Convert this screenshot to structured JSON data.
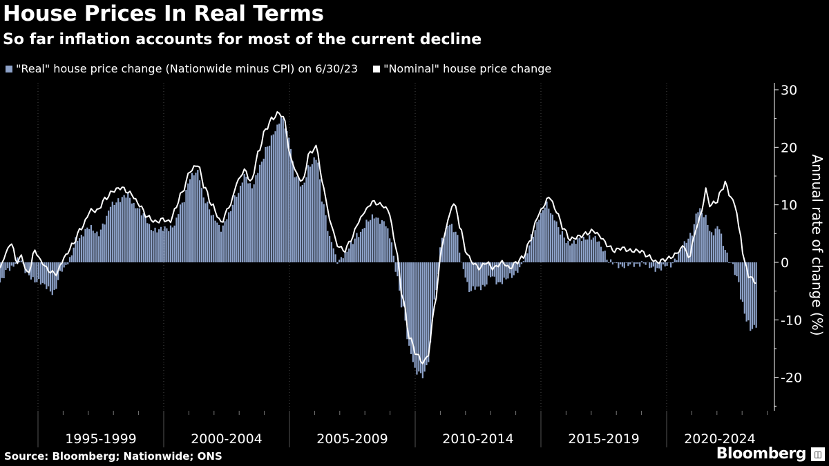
{
  "title": "House Prices In Real Terms",
  "subtitle": "So far inflation accounts for most of the current decline",
  "source": "Source: Bloomberg; Nationwide; ONS",
  "brand": "Bloomberg",
  "brand_mark_icon": "bloomberg-terminal-icon",
  "colors": {
    "real": "#8da2c9",
    "nominal": "#ffffff",
    "background": "#000000"
  },
  "chart_data": {
    "type": "bar+line",
    "title": "House Prices In Real Terms",
    "subtitle": "So far inflation accounts for most of the current decline",
    "ylabel": "Annual rate of change (%)",
    "xlabel": "",
    "ylim": [
      -26,
      30
    ],
    "yticks": [
      30,
      20,
      10,
      0,
      -10,
      -20
    ],
    "xlim": [
      1991.0,
      2023.6
    ],
    "period_labels": [
      "1995-1999",
      "2000-2004",
      "2005-2009",
      "2010-2014",
      "2015-2019",
      "2020-2024"
    ],
    "legend_position": "top-left",
    "grid": "vertical dotted",
    "series": [
      {
        "name": "\"Real\" house price change (Nationwide minus CPI) on 6/30/23",
        "kind": "bar",
        "anchors": [
          [
            1991.0,
            -3.5
          ],
          [
            1991.4,
            -1
          ],
          [
            1991.8,
            0.5
          ],
          [
            1992.2,
            -2
          ],
          [
            1992.6,
            -3.5
          ],
          [
            1993.0,
            -4
          ],
          [
            1993.3,
            -5.5
          ],
          [
            1993.7,
            -1
          ],
          [
            1994.0,
            0.5
          ],
          [
            1994.3,
            4
          ],
          [
            1994.8,
            6
          ],
          [
            1995.2,
            5
          ],
          [
            1995.5,
            7
          ],
          [
            1995.8,
            10
          ],
          [
            1996.1,
            11
          ],
          [
            1996.5,
            11.5
          ],
          [
            1996.8,
            10
          ],
          [
            1997.2,
            8
          ],
          [
            1997.5,
            6
          ],
          [
            1997.8,
            5.5
          ],
          [
            1998.2,
            6
          ],
          [
            1998.5,
            6.5
          ],
          [
            1998.8,
            10
          ],
          [
            1999.2,
            15
          ],
          [
            1999.5,
            15.5
          ],
          [
            1999.8,
            11
          ],
          [
            2000.2,
            7.5
          ],
          [
            2000.5,
            6
          ],
          [
            2000.8,
            8
          ],
          [
            2001.2,
            12
          ],
          [
            2001.5,
            15
          ],
          [
            2001.8,
            13
          ],
          [
            2002.2,
            17
          ],
          [
            2002.5,
            20
          ],
          [
            2002.8,
            23
          ],
          [
            2003.1,
            25
          ],
          [
            2003.4,
            22
          ],
          [
            2003.7,
            15
          ],
          [
            2004.0,
            13
          ],
          [
            2004.3,
            17
          ],
          [
            2004.6,
            18
          ],
          [
            2004.9,
            10
          ],
          [
            2005.2,
            4
          ],
          [
            2005.5,
            0
          ],
          [
            2005.8,
            1.5
          ],
          [
            2006.1,
            3
          ],
          [
            2006.4,
            5
          ],
          [
            2006.8,
            7
          ],
          [
            2007.1,
            8
          ],
          [
            2007.5,
            7
          ],
          [
            2007.8,
            4
          ],
          [
            2008.0,
            -1
          ],
          [
            2008.3,
            -8
          ],
          [
            2008.6,
            -15
          ],
          [
            2008.9,
            -19
          ],
          [
            2009.2,
            -20
          ],
          [
            2009.4,
            -17
          ],
          [
            2009.7,
            -6
          ],
          [
            2010.0,
            4
          ],
          [
            2010.3,
            7
          ],
          [
            2010.6,
            5
          ],
          [
            2010.9,
            -1
          ],
          [
            2011.2,
            -5
          ],
          [
            2011.5,
            -4.5
          ],
          [
            2011.8,
            -4
          ],
          [
            2012.1,
            -2.5
          ],
          [
            2012.4,
            -3.5
          ],
          [
            2012.7,
            -3
          ],
          [
            2013.0,
            -2.5
          ],
          [
            2013.3,
            -1
          ],
          [
            2013.6,
            1
          ],
          [
            2013.9,
            5
          ],
          [
            2014.2,
            8
          ],
          [
            2014.5,
            10
          ],
          [
            2014.8,
            8
          ],
          [
            2015.1,
            5
          ],
          [
            2015.4,
            3.5
          ],
          [
            2015.7,
            3.5
          ],
          [
            2016.0,
            4
          ],
          [
            2016.3,
            4.5
          ],
          [
            2016.6,
            4
          ],
          [
            2016.9,
            2.5
          ],
          [
            2017.2,
            0
          ],
          [
            2017.5,
            -0.5
          ],
          [
            2017.8,
            -0.5
          ],
          [
            2018.2,
            -0.5
          ],
          [
            2018.6,
            0
          ],
          [
            2019.0,
            -1
          ],
          [
            2019.4,
            -1
          ],
          [
            2019.8,
            -0.5
          ],
          [
            2020.1,
            1
          ],
          [
            2020.4,
            3
          ],
          [
            2020.7,
            5
          ],
          [
            2021.0,
            9
          ],
          [
            2021.3,
            8
          ],
          [
            2021.6,
            5
          ],
          [
            2021.9,
            6
          ],
          [
            2022.1,
            3
          ],
          [
            2022.4,
            0
          ],
          [
            2022.7,
            -3
          ],
          [
            2022.9,
            -7
          ],
          [
            2023.1,
            -10
          ],
          [
            2023.3,
            -12
          ],
          [
            2023.5,
            -11
          ]
        ]
      },
      {
        "name": "\"Nominal\" house price change",
        "kind": "line",
        "anchors": [
          [
            1991.0,
            -1
          ],
          [
            1991.3,
            2
          ],
          [
            1991.5,
            3.5
          ],
          [
            1991.7,
            0
          ],
          [
            1991.9,
            1
          ],
          [
            1992.2,
            -2
          ],
          [
            1992.5,
            2
          ],
          [
            1992.8,
            0
          ],
          [
            1993.1,
            -1.5
          ],
          [
            1993.4,
            -2
          ],
          [
            1993.8,
            1
          ],
          [
            1994.1,
            3
          ],
          [
            1994.5,
            6
          ],
          [
            1994.9,
            9
          ],
          [
            1995.2,
            9
          ],
          [
            1995.5,
            11
          ],
          [
            1995.9,
            12.5
          ],
          [
            1996.2,
            13
          ],
          [
            1996.6,
            12
          ],
          [
            1997.0,
            10
          ],
          [
            1997.3,
            8
          ],
          [
            1997.7,
            7
          ],
          [
            1998.0,
            7.5
          ],
          [
            1998.3,
            7
          ],
          [
            1998.5,
            9
          ],
          [
            1998.8,
            12
          ],
          [
            1999.2,
            16
          ],
          [
            1999.5,
            17
          ],
          [
            1999.8,
            13
          ],
          [
            2000.1,
            10
          ],
          [
            2000.5,
            7
          ],
          [
            2000.9,
            10
          ],
          [
            2001.2,
            14
          ],
          [
            2001.5,
            16
          ],
          [
            2001.8,
            14
          ],
          [
            2002.1,
            19
          ],
          [
            2002.4,
            23
          ],
          [
            2002.7,
            25
          ],
          [
            2003.0,
            26
          ],
          [
            2003.2,
            25
          ],
          [
            2003.5,
            18
          ],
          [
            2003.8,
            15
          ],
          [
            2004.0,
            14
          ],
          [
            2004.3,
            19
          ],
          [
            2004.6,
            20
          ],
          [
            2004.9,
            13
          ],
          [
            2005.2,
            7
          ],
          [
            2005.5,
            3
          ],
          [
            2005.8,
            2
          ],
          [
            2006.1,
            4
          ],
          [
            2006.4,
            7
          ],
          [
            2006.7,
            9
          ],
          [
            2007.0,
            10.5
          ],
          [
            2007.4,
            10
          ],
          [
            2007.7,
            9
          ],
          [
            2008.0,
            3
          ],
          [
            2008.3,
            -6
          ],
          [
            2008.6,
            -13
          ],
          [
            2008.9,
            -16
          ],
          [
            2009.2,
            -17.5
          ],
          [
            2009.4,
            -16
          ],
          [
            2009.7,
            -7
          ],
          [
            2010.0,
            3
          ],
          [
            2010.3,
            8
          ],
          [
            2010.5,
            10.5
          ],
          [
            2010.8,
            6
          ],
          [
            2011.0,
            2
          ],
          [
            2011.3,
            0
          ],
          [
            2011.6,
            -1
          ],
          [
            2011.9,
            0
          ],
          [
            2012.2,
            -1
          ],
          [
            2012.6,
            0
          ],
          [
            2012.9,
            -1
          ],
          [
            2013.2,
            0
          ],
          [
            2013.5,
            1
          ],
          [
            2013.8,
            4
          ],
          [
            2014.1,
            8
          ],
          [
            2014.4,
            10
          ],
          [
            2014.6,
            11.5
          ],
          [
            2014.9,
            9
          ],
          [
            2015.2,
            6
          ],
          [
            2015.5,
            4
          ],
          [
            2015.9,
            4.5
          ],
          [
            2016.2,
            5
          ],
          [
            2016.5,
            5.5
          ],
          [
            2016.8,
            4.5
          ],
          [
            2017.1,
            3
          ],
          [
            2017.4,
            2
          ],
          [
            2017.7,
            2.5
          ],
          [
            2018.1,
            2
          ],
          [
            2018.5,
            2
          ],
          [
            2018.9,
            1
          ],
          [
            2019.2,
            0
          ],
          [
            2019.6,
            0.5
          ],
          [
            2019.9,
            1
          ],
          [
            2020.2,
            2
          ],
          [
            2020.4,
            3
          ],
          [
            2020.6,
            0.5
          ],
          [
            2020.8,
            4
          ],
          [
            2021.0,
            7
          ],
          [
            2021.2,
            9
          ],
          [
            2021.3,
            13
          ],
          [
            2021.5,
            10
          ],
          [
            2021.8,
            10.5
          ],
          [
            2022.0,
            12.5
          ],
          [
            2022.2,
            14
          ],
          [
            2022.3,
            12
          ],
          [
            2022.6,
            10
          ],
          [
            2022.8,
            5
          ],
          [
            2023.0,
            0
          ],
          [
            2023.2,
            -2.5
          ],
          [
            2023.5,
            -3.5
          ]
        ]
      }
    ]
  }
}
